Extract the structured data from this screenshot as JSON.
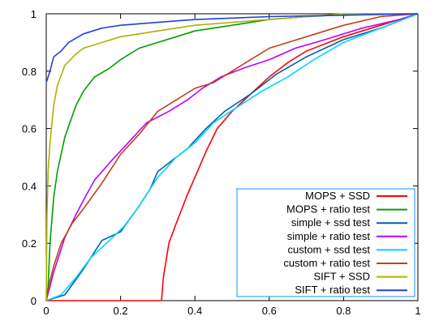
{
  "chart_data": {
    "type": "line",
    "title": "",
    "xlabel": "",
    "ylabel": "",
    "xlim": [
      0,
      1
    ],
    "ylim": [
      0,
      1
    ],
    "grid": false,
    "legend_position": "bottom-right",
    "x_ticks": [
      {
        "value": 0,
        "label": "0"
      },
      {
        "value": 0.2,
        "label": "0.2"
      },
      {
        "value": 0.4,
        "label": "0.4"
      },
      {
        "value": 0.6,
        "label": "0.6"
      },
      {
        "value": 0.8,
        "label": "0.8"
      },
      {
        "value": 1,
        "label": "1"
      }
    ],
    "y_ticks": [
      {
        "value": 0,
        "label": "0"
      },
      {
        "value": 0.2,
        "label": "0.2"
      },
      {
        "value": 0.4,
        "label": "0.4"
      },
      {
        "value": 0.6,
        "label": "0.6"
      },
      {
        "value": 0.8,
        "label": "0.8"
      },
      {
        "value": 1,
        "label": "1"
      }
    ],
    "series": [
      {
        "name": "MOPS + SSD",
        "color": "#ff0000",
        "points": [
          [
            0,
            0
          ],
          [
            0.31,
            0
          ],
          [
            0.315,
            0.08
          ],
          [
            0.33,
            0.2
          ],
          [
            0.35,
            0.27
          ],
          [
            0.38,
            0.37
          ],
          [
            0.4,
            0.43
          ],
          [
            0.43,
            0.52
          ],
          [
            0.46,
            0.6
          ],
          [
            0.5,
            0.66
          ],
          [
            0.55,
            0.72
          ],
          [
            0.6,
            0.78
          ],
          [
            0.65,
            0.83
          ],
          [
            0.7,
            0.87
          ],
          [
            0.8,
            0.92
          ],
          [
            0.9,
            0.96
          ],
          [
            0.95,
            0.98
          ],
          [
            1,
            1
          ]
        ]
      },
      {
        "name": "MOPS + ratio test",
        "color": "#00a000",
        "points": [
          [
            0,
            0
          ],
          [
            0.005,
            0.05
          ],
          [
            0.01,
            0.2
          ],
          [
            0.02,
            0.36
          ],
          [
            0.03,
            0.45
          ],
          [
            0.05,
            0.57
          ],
          [
            0.08,
            0.68
          ],
          [
            0.1,
            0.73
          ],
          [
            0.13,
            0.78
          ],
          [
            0.17,
            0.81
          ],
          [
            0.2,
            0.84
          ],
          [
            0.25,
            0.88
          ],
          [
            0.3,
            0.9
          ],
          [
            0.35,
            0.92
          ],
          [
            0.4,
            0.94
          ],
          [
            0.5,
            0.96
          ],
          [
            0.6,
            0.98
          ],
          [
            0.7,
            0.99
          ],
          [
            0.85,
            1
          ],
          [
            1,
            1
          ]
        ]
      },
      {
        "name": "simple + ssd test",
        "color": "#0060ad",
        "points": [
          [
            0,
            0
          ],
          [
            0.05,
            0.02
          ],
          [
            0.1,
            0.11
          ],
          [
            0.15,
            0.21
          ],
          [
            0.2,
            0.24
          ],
          [
            0.25,
            0.33
          ],
          [
            0.28,
            0.39
          ],
          [
            0.3,
            0.45
          ],
          [
            0.33,
            0.48
          ],
          [
            0.38,
            0.53
          ],
          [
            0.43,
            0.6
          ],
          [
            0.48,
            0.66
          ],
          [
            0.55,
            0.72
          ],
          [
            0.62,
            0.79
          ],
          [
            0.7,
            0.85
          ],
          [
            0.8,
            0.91
          ],
          [
            0.9,
            0.95
          ],
          [
            1,
            1
          ]
        ]
      },
      {
        "name": "simple + ratio test",
        "color": "#c000ff",
        "points": [
          [
            0,
            0
          ],
          [
            0.02,
            0.1
          ],
          [
            0.05,
            0.22
          ],
          [
            0.08,
            0.3
          ],
          [
            0.1,
            0.35
          ],
          [
            0.13,
            0.42
          ],
          [
            0.17,
            0.48
          ],
          [
            0.22,
            0.55
          ],
          [
            0.27,
            0.62
          ],
          [
            0.33,
            0.66
          ],
          [
            0.38,
            0.7
          ],
          [
            0.42,
            0.74
          ],
          [
            0.47,
            0.78
          ],
          [
            0.53,
            0.81
          ],
          [
            0.6,
            0.84
          ],
          [
            0.67,
            0.88
          ],
          [
            0.75,
            0.91
          ],
          [
            0.85,
            0.95
          ],
          [
            0.95,
            0.98
          ],
          [
            1,
            1
          ]
        ]
      },
      {
        "name": "custom + ssd test",
        "color": "#00d5ff",
        "points": [
          [
            0,
            0
          ],
          [
            0.04,
            0.02
          ],
          [
            0.08,
            0.08
          ],
          [
            0.12,
            0.15
          ],
          [
            0.17,
            0.21
          ],
          [
            0.21,
            0.26
          ],
          [
            0.25,
            0.33
          ],
          [
            0.3,
            0.43
          ],
          [
            0.35,
            0.5
          ],
          [
            0.4,
            0.55
          ],
          [
            0.45,
            0.62
          ],
          [
            0.52,
            0.68
          ],
          [
            0.58,
            0.73
          ],
          [
            0.65,
            0.78
          ],
          [
            0.72,
            0.84
          ],
          [
            0.8,
            0.9
          ],
          [
            0.9,
            0.95
          ],
          [
            0.96,
            0.98
          ],
          [
            1,
            1
          ]
        ]
      },
      {
        "name": "custom + ratio test",
        "color": "#c0401a",
        "points": [
          [
            0,
            0
          ],
          [
            0.01,
            0.07
          ],
          [
            0.02,
            0.12
          ],
          [
            0.04,
            0.2
          ],
          [
            0.07,
            0.27
          ],
          [
            0.1,
            0.32
          ],
          [
            0.15,
            0.41
          ],
          [
            0.2,
            0.51
          ],
          [
            0.25,
            0.58
          ],
          [
            0.3,
            0.66
          ],
          [
            0.35,
            0.7
          ],
          [
            0.4,
            0.74
          ],
          [
            0.45,
            0.76
          ],
          [
            0.5,
            0.8
          ],
          [
            0.55,
            0.84
          ],
          [
            0.6,
            0.88
          ],
          [
            0.65,
            0.9
          ],
          [
            0.7,
            0.92
          ],
          [
            0.8,
            0.96
          ],
          [
            0.9,
            0.99
          ],
          [
            1,
            1
          ]
        ]
      },
      {
        "name": "SIFT + SSD",
        "color": "#b0b000",
        "points": [
          [
            0,
            0
          ],
          [
            0.002,
            0.3
          ],
          [
            0.005,
            0.45
          ],
          [
            0.01,
            0.55
          ],
          [
            0.02,
            0.68
          ],
          [
            0.03,
            0.75
          ],
          [
            0.05,
            0.82
          ],
          [
            0.08,
            0.86
          ],
          [
            0.1,
            0.88
          ],
          [
            0.15,
            0.9
          ],
          [
            0.2,
            0.92
          ],
          [
            0.3,
            0.94
          ],
          [
            0.4,
            0.96
          ],
          [
            0.5,
            0.97
          ],
          [
            0.6,
            0.98
          ],
          [
            0.7,
            0.99
          ],
          [
            0.8,
            1
          ],
          [
            1,
            1
          ]
        ]
      },
      {
        "name": "SIFT + ratio test",
        "color": "#2040e0",
        "points": [
          [
            0,
            0.76
          ],
          [
            0.01,
            0.8
          ],
          [
            0.02,
            0.85
          ],
          [
            0.04,
            0.87
          ],
          [
            0.06,
            0.9
          ],
          [
            0.1,
            0.93
          ],
          [
            0.15,
            0.95
          ],
          [
            0.2,
            0.96
          ],
          [
            0.3,
            0.97
          ],
          [
            0.4,
            0.98
          ],
          [
            0.5,
            0.985
          ],
          [
            0.6,
            0.99
          ],
          [
            0.8,
            0.995
          ],
          [
            1,
            1
          ]
        ]
      }
    ]
  }
}
